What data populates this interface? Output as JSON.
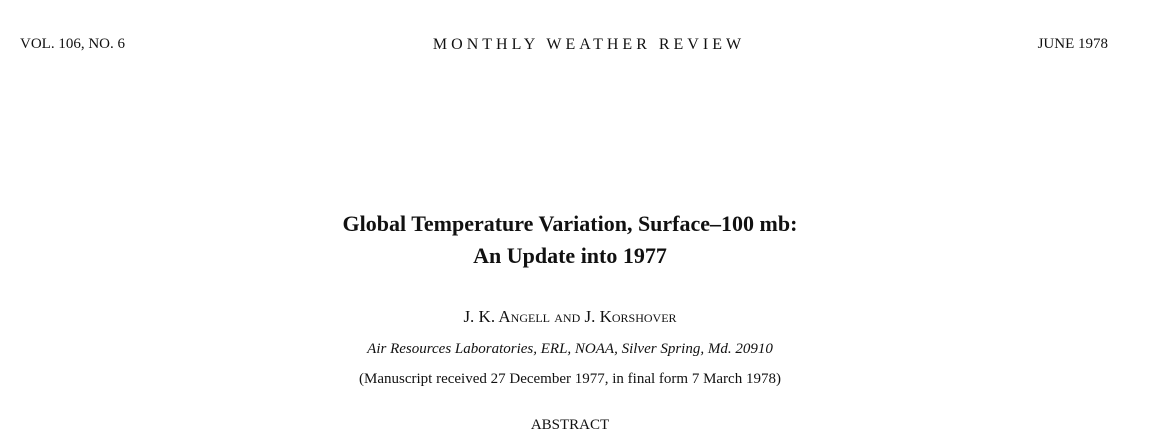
{
  "header": {
    "left": "VOL. 106, NO. 6",
    "center": "MONTHLY WEATHER REVIEW",
    "right": "JUNE 1978"
  },
  "title": [
    "Global Temperature Variation, Surface–100 mb:",
    "An Update into 1977"
  ],
  "authors": "J. K. Angell and J. Korshover",
  "affiliation": "Air Resources Laboratories, ERL, NOAA, Silver Spring, Md. 20910",
  "manuscript_note": "(Manuscript received 27 December 1977, in final form 7 March 1978)",
  "section_heading": "ABSTRACT"
}
